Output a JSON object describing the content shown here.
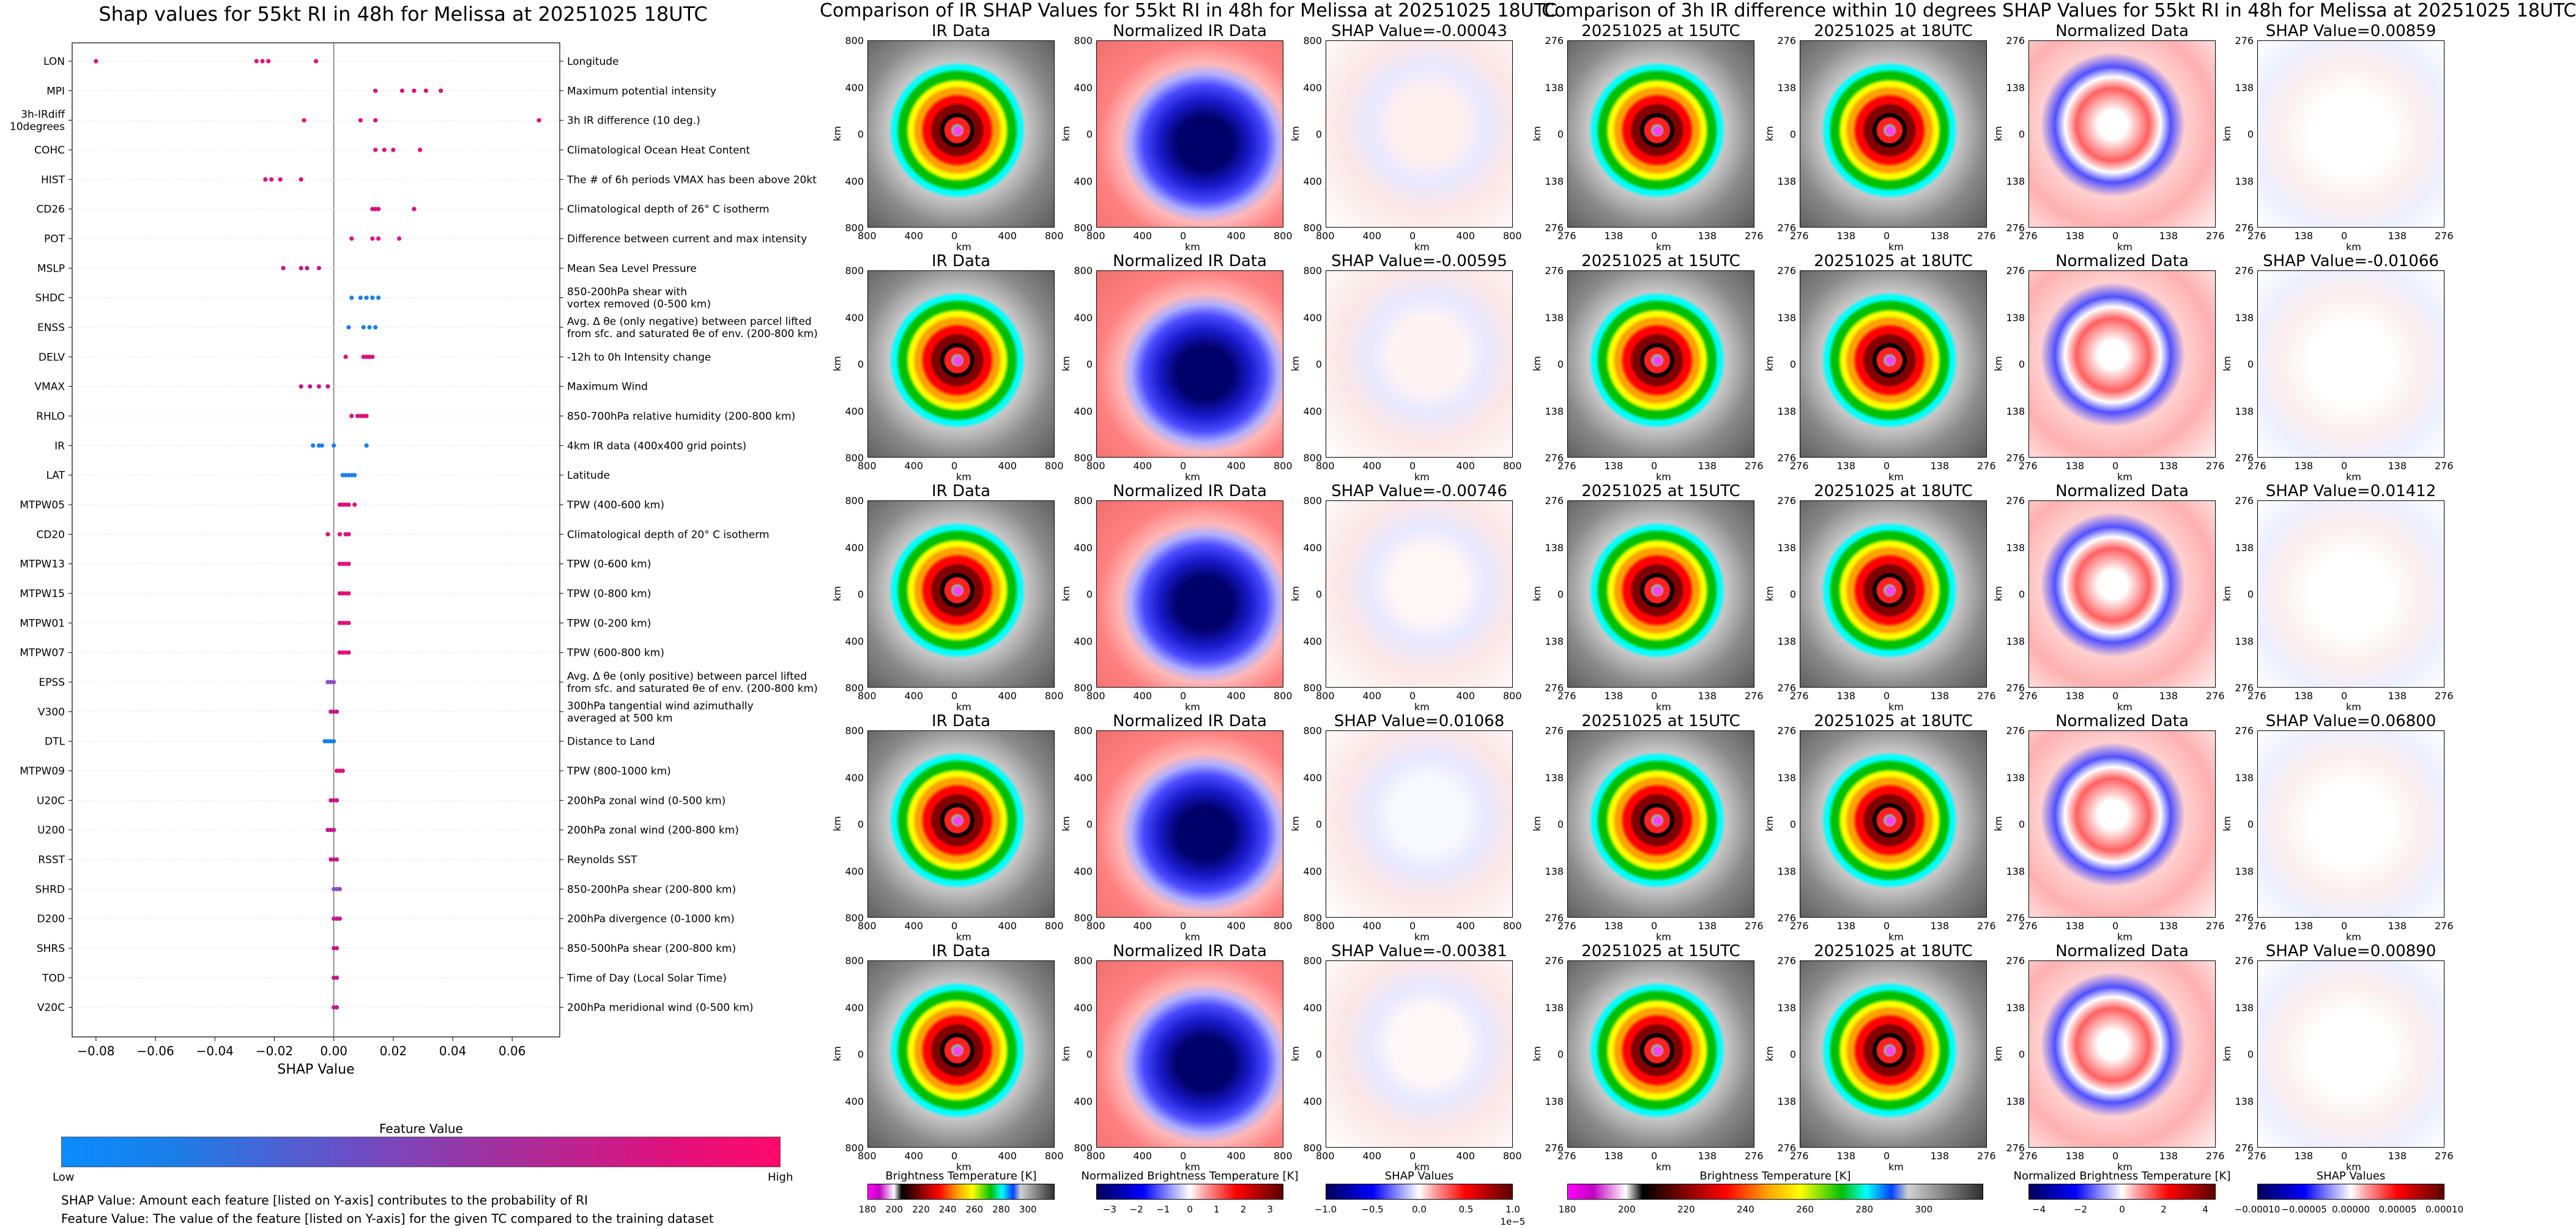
{
  "left": {
    "title": "Shap values for 55kt RI in 48h for Melissa at 20251025 18UTC",
    "xlabel": "SHAP Value",
    "colorbar_title": "Feature Value",
    "colorbar_low": "Low",
    "colorbar_high": "High",
    "note1": "SHAP Value: Amount each feature [listed on Y-axis] contributes to the probability of RI",
    "note2": "Feature Value: The value of the feature [listed on Y-axis] for the given TC compared to the training dataset"
  },
  "chart_data": [
    {
      "type": "scatter",
      "title": "Shap values for 55kt RI in 48h for Melissa at 20251025 18UTC",
      "xlabel": "SHAP Value",
      "ylabel": "",
      "xlim": [
        -0.088,
        0.076
      ],
      "xticks": [
        "−0.08",
        "−0.06",
        "−0.04",
        "−0.02",
        "0.00",
        "0.02",
        "0.04",
        "0.06"
      ],
      "xtick_values": [
        -0.08,
        -0.06,
        -0.04,
        -0.02,
        0.0,
        0.02,
        0.04,
        0.06
      ],
      "grid": false,
      "features": [
        {
          "code": "LON",
          "desc": "Longitude",
          "points": [
            -0.08,
            -0.026,
            -0.024,
            -0.022,
            -0.006
          ],
          "color": "#e0107a"
        },
        {
          "code": "MPI",
          "desc": "Maximum potential intensity",
          "points": [
            0.014,
            0.023,
            0.027,
            0.031,
            0.036
          ],
          "color": "#e0107a"
        },
        {
          "code": "3h-IRdiff\n10degrees",
          "desc": "3h IR difference (10 deg.)",
          "points": [
            -0.01,
            0.009,
            0.014,
            0.069
          ],
          "color": "#e0107a"
        },
        {
          "code": "COHC",
          "desc": "Climatological Ocean Heat Content",
          "points": [
            0.014,
            0.017,
            0.02,
            0.029
          ],
          "color": "#e0107a"
        },
        {
          "code": "HIST",
          "desc": "The # of 6h periods VMAX has been above 20kt",
          "points": [
            -0.023,
            -0.021,
            -0.018,
            -0.011
          ],
          "color": "#e0107a"
        },
        {
          "code": "CD26",
          "desc": "Climatological depth of 26° C isotherm",
          "points": [
            0.013,
            0.014,
            0.015,
            0.027
          ],
          "color": "#e0107a"
        },
        {
          "code": "POT",
          "desc": "Difference between current and max intensity",
          "points": [
            0.006,
            0.013,
            0.015,
            0.022
          ],
          "color": "#e0107a"
        },
        {
          "code": "MSLP",
          "desc": "Mean Sea Level Pressure",
          "points": [
            -0.017,
            -0.011,
            -0.009,
            -0.005
          ],
          "color": "#c2188a"
        },
        {
          "code": "SHDC",
          "desc": "850-200hPa shear with\nvortex removed (0-500 km)",
          "points": [
            0.006,
            0.009,
            0.011,
            0.013,
            0.015
          ],
          "color": "#1a7fe8"
        },
        {
          "code": "ENSS",
          "desc": "Avg. Δ θe (only negative) between parcel lifted\nfrom sfc. and saturated θe of env. (200-800 km)",
          "points": [
            0.005,
            0.01,
            0.012,
            0.014
          ],
          "color": "#1a7fe8"
        },
        {
          "code": "DELV",
          "desc": "-12h to 0h Intensity change",
          "points": [
            0.004,
            0.01,
            0.011,
            0.012,
            0.013
          ],
          "color": "#e0107a"
        },
        {
          "code": "VMAX",
          "desc": "Maximum Wind",
          "points": [
            -0.011,
            -0.008,
            -0.005,
            -0.002
          ],
          "color": "#c2188a"
        },
        {
          "code": "RHLO",
          "desc": "850-700hPa relative humidity (200-800 km)",
          "points": [
            0.006,
            0.008,
            0.009,
            0.01,
            0.011
          ],
          "color": "#e0107a"
        },
        {
          "code": "IR",
          "desc": "4km IR data (400x400 grid points)",
          "points": [
            -0.007,
            -0.005,
            -0.004,
            0.0,
            0.011
          ],
          "color": "#1a7fe8"
        },
        {
          "code": "LAT",
          "desc": "Latitude",
          "points": [
            0.003,
            0.004,
            0.005,
            0.006,
            0.007
          ],
          "color": "#1a7fe8"
        },
        {
          "code": "MTPW05",
          "desc": "TPW (400-600 km)",
          "points": [
            0.002,
            0.003,
            0.004,
            0.005,
            0.007
          ],
          "color": "#e0107a"
        },
        {
          "code": "CD20",
          "desc": "Climatological depth of 20° C isotherm",
          "points": [
            -0.002,
            0.002,
            0.004,
            0.005
          ],
          "color": "#e0107a"
        },
        {
          "code": "MTPW13",
          "desc": "TPW (0-600 km)",
          "points": [
            0.002,
            0.003,
            0.004,
            0.005
          ],
          "color": "#e0107a"
        },
        {
          "code": "MTPW15",
          "desc": "TPW (0-800 km)",
          "points": [
            0.002,
            0.003,
            0.004,
            0.005
          ],
          "color": "#e0107a"
        },
        {
          "code": "MTPW01",
          "desc": "TPW (0-200 km)",
          "points": [
            0.002,
            0.003,
            0.004,
            0.005
          ],
          "color": "#e0107a"
        },
        {
          "code": "MTPW07",
          "desc": "TPW (600-800 km)",
          "points": [
            0.002,
            0.003,
            0.004,
            0.005
          ],
          "color": "#e0107a"
        },
        {
          "code": "EPSS",
          "desc": "Avg. Δ θe (only positive) between parcel lifted\nfrom sfc. and saturated θe of env. (200-800 km)",
          "points": [
            -0.002,
            -0.001,
            0.0
          ],
          "color": "#8a4fc0"
        },
        {
          "code": "V300",
          "desc": "300hPa tangential wind azimuthally\naveraged at 500 km",
          "points": [
            -0.001,
            0.0,
            0.001
          ],
          "color": "#c2188a"
        },
        {
          "code": "DTL",
          "desc": "Distance to Land",
          "points": [
            -0.003,
            -0.002,
            -0.001,
            0.0
          ],
          "color": "#1a7fe8"
        },
        {
          "code": "MTPW09",
          "desc": "TPW (800-1000 km)",
          "points": [
            0.001,
            0.002,
            0.003
          ],
          "color": "#e0107a"
        },
        {
          "code": "U20C",
          "desc": "200hPa zonal wind (0-500 km)",
          "points": [
            -0.001,
            0.0,
            0.001
          ],
          "color": "#c2188a"
        },
        {
          "code": "U200",
          "desc": "200hPa zonal wind (200-800 km)",
          "points": [
            -0.002,
            -0.001,
            0.0
          ],
          "color": "#c2188a"
        },
        {
          "code": "RSST",
          "desc": "Reynolds SST",
          "points": [
            -0.001,
            0.0,
            0.001
          ],
          "color": "#c2188a"
        },
        {
          "code": "SHRD",
          "desc": "850-200hPa shear (200-800 km)",
          "points": [
            0.0,
            0.001,
            0.002
          ],
          "color": "#8a4fc0"
        },
        {
          "code": "D200",
          "desc": "200hPa divergence (0-1000 km)",
          "points": [
            0.0,
            0.001,
            0.002
          ],
          "color": "#c2188a"
        },
        {
          "code": "SHRS",
          "desc": "850-500hPa shear (200-800 km)",
          "points": [
            0.0,
            0.001
          ],
          "color": "#c2188a"
        },
        {
          "code": "TOD",
          "desc": "Time of Day (Local Solar Time)",
          "points": [
            0.0,
            0.001
          ],
          "color": "#c2188a"
        },
        {
          "code": "V20C",
          "desc": "200hPa meridional wind (0-500 km)",
          "points": [
            0.0,
            0.001
          ],
          "color": "#c2188a"
        }
      ]
    },
    {
      "type": "heatmap",
      "title": "Comparison of IR SHAP Values for 55kt RI in 48h for Melissa at 20251025 18UTC",
      "axis_label": "km",
      "yticks": [
        "800",
        "400",
        "0",
        "400",
        "800"
      ],
      "xticks": [
        "800",
        "400",
        "0",
        "400",
        "800"
      ],
      "columns": [
        "IR Data",
        "Normalized IR Data",
        "SHAP"
      ],
      "shap_titles": [
        "SHAP Value=-0.00043",
        "SHAP Value=-0.00595",
        "SHAP Value=-0.00746",
        "SHAP Value=0.01068",
        "SHAP Value=-0.00381"
      ],
      "colorbars": [
        {
          "title": "Brightness Temperature [K]",
          "ticks": [
            "180",
            "200",
            "220",
            "240",
            "260",
            "280",
            "300"
          ]
        },
        {
          "title": "Normalized Brightness Temperature [K]",
          "ticks": [
            "−3",
            "−2",
            "−1",
            "0",
            "1",
            "2",
            "3"
          ]
        },
        {
          "title": "SHAP Values",
          "ticks": [
            "−1.0",
            "−0.5",
            "0.0",
            "0.5",
            "1.0"
          ],
          "offset": "1e−5"
        }
      ]
    },
    {
      "type": "heatmap",
      "title": "Comparison of 3h IR difference within 10 degrees SHAP Values for 55kt RI in 48h for Melissa at 20251025 18UTC",
      "axis_label": "km",
      "yticks": [
        "276",
        "138",
        "0",
        "138",
        "276"
      ],
      "xticks": [
        "276",
        "138",
        "0",
        "138",
        "276"
      ],
      "columns": [
        "20251025 at 15UTC",
        "20251025 at 18UTC",
        "Normalized Data",
        "SHAP"
      ],
      "shap_titles": [
        "SHAP Value=0.00859",
        "SHAP Value=-0.01066",
        "SHAP Value=0.01412",
        "SHAP Value=0.06800",
        "SHAP Value=0.00890"
      ],
      "colorbars": [
        {
          "title": "Brightness Temperature [K]",
          "ticks": [
            "180",
            "200",
            "220",
            "240",
            "260",
            "280",
            "300"
          ]
        },
        {
          "title": "Normalized Brightness Temperature [K]",
          "ticks": [
            "−4",
            "−2",
            "0",
            "2",
            "4"
          ]
        },
        {
          "title": "SHAP Values",
          "ticks": [
            "−0.00010",
            "−0.00005",
            "0.00000",
            "0.00005",
            "0.00010"
          ]
        }
      ]
    }
  ]
}
